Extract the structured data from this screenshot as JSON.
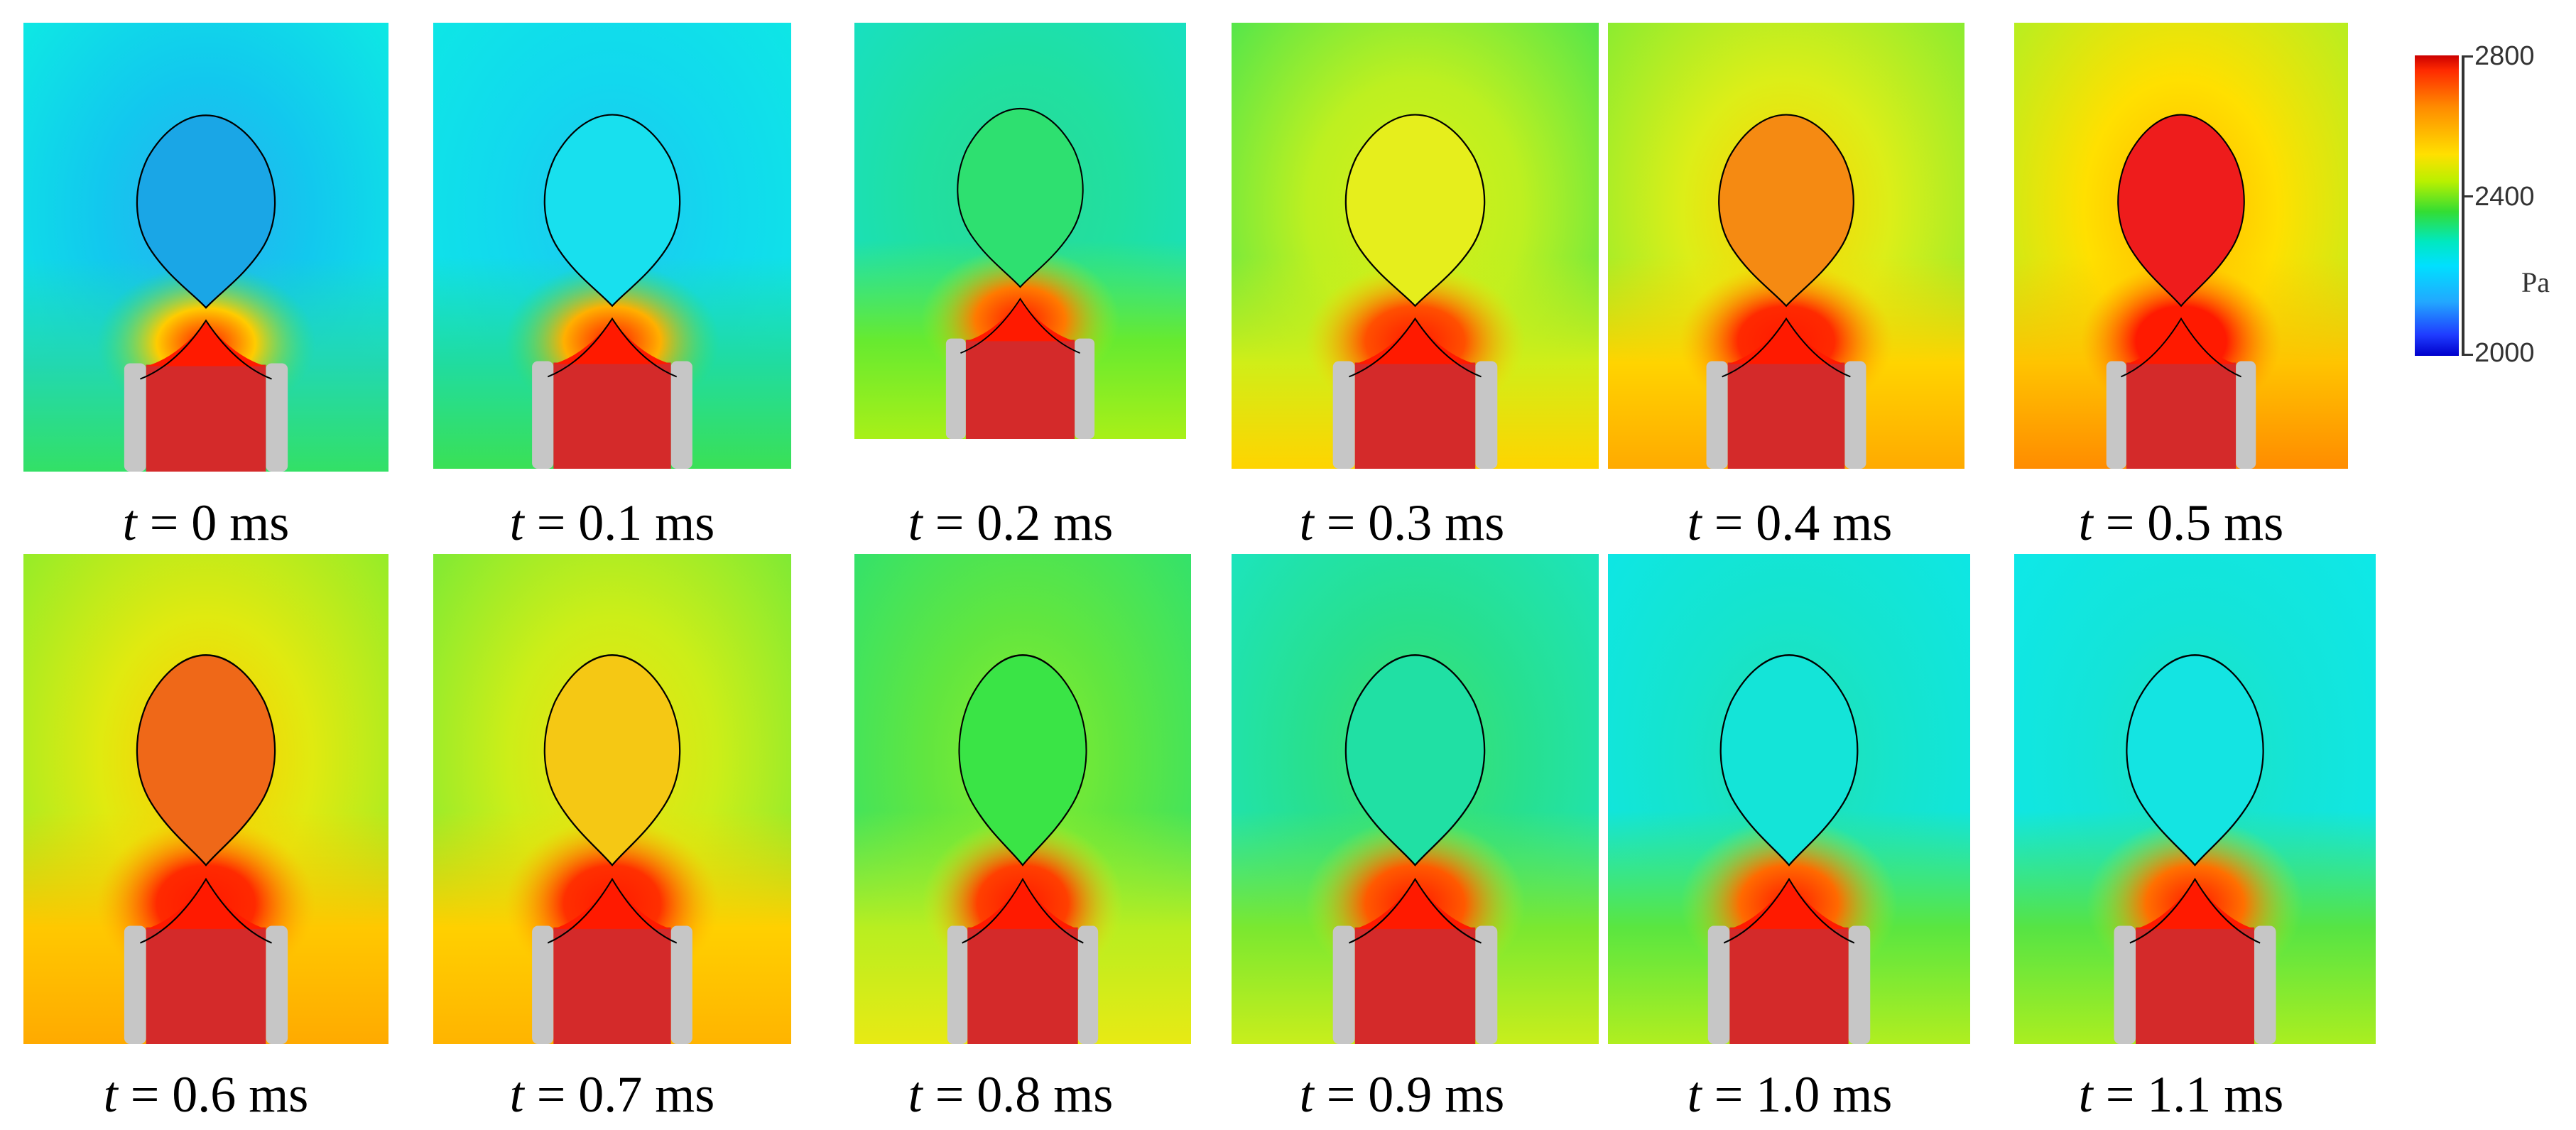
{
  "frames": [
    {
      "label_var": "t",
      "label_rest": " = 0 ms",
      "inside": "#1aa6e6",
      "field": [
        "#0ee6e6",
        "#12c8ee",
        "#2ab0f0"
      ],
      "outer": "#0ee8e4",
      "lower": [
        "#22d8b0",
        "#33e066"
      ],
      "neck": "#ffcc00"
    },
    {
      "label_var": "t",
      "label_rest": " = 0.1 ms",
      "inside": "#18e0ee",
      "field": [
        "#0ee6e6",
        "#12d8ee",
        "#20c6f0"
      ],
      "outer": "#0ee6e6",
      "lower": [
        "#20dca0",
        "#3ae056"
      ],
      "neck": "#ffb000"
    },
    {
      "label_var": "t",
      "label_rest": " = 0.2 ms",
      "inside": "#2ee070",
      "field": [
        "#16e6b8",
        "#20e0a0",
        "#2ad89a"
      ],
      "outer": "#18e0c0",
      "lower": [
        "#66ea30",
        "#a8f018"
      ],
      "neck": "#ff7a00"
    },
    {
      "label_var": "t",
      "label_rest": " = 0.3 ms",
      "inside": "#e6ee1c",
      "field": [
        "#8ef030",
        "#bdf020",
        "#d8ee18"
      ],
      "outer": "#56e64a",
      "lower": [
        "#d0ee18",
        "#ffd400"
      ],
      "neck": "#ff5000"
    },
    {
      "label_var": "t",
      "label_rest": " = 0.4 ms",
      "inside": "#f58a12",
      "field": [
        "#a6ee20",
        "#dcee18",
        "#ffd000"
      ],
      "outer": "#8cec30",
      "lower": [
        "#ffd400",
        "#ffaa00"
      ],
      "neck": "#ff2a00"
    },
    {
      "label_var": "t",
      "label_rest": " = 0.5 ms",
      "inside": "#ee1c1c",
      "field": [
        "#c8ee1c",
        "#ffe000",
        "#ffb400"
      ],
      "outer": "#b8ee20",
      "lower": [
        "#ffc400",
        "#ff8c00"
      ],
      "neck": "#ff1a00"
    },
    {
      "label_var": "t",
      "label_rest": " = 0.6 ms",
      "inside": "#ef6818",
      "field": [
        "#a6ee20",
        "#e0ea10",
        "#ffc800"
      ],
      "outer": "#96ec28",
      "lower": [
        "#ffc800",
        "#ffaa00"
      ],
      "neck": "#ff2a00"
    },
    {
      "label_var": "t",
      "label_rest": " = 0.7 ms",
      "inside": "#f5c814",
      "field": [
        "#94ec28",
        "#ccee18",
        "#f0e010"
      ],
      "outer": "#80ea34",
      "lower": [
        "#ffd000",
        "#ffb400"
      ],
      "neck": "#ff3000"
    },
    {
      "label_var": "t",
      "label_rest": " = 0.8 ms",
      "inside": "#3ae446",
      "field": [
        "#30e080",
        "#60e640",
        "#8aec2c"
      ],
      "outer": "#34e26a",
      "lower": [
        "#b8ee20",
        "#e8ea14"
      ],
      "neck": "#ff4000"
    },
    {
      "label_var": "t",
      "label_rest": " = 0.9 ms",
      "inside": "#20e0a4",
      "field": [
        "#18e2b0",
        "#28e08e",
        "#40e26a"
      ],
      "outer": "#1ce4bc",
      "lower": [
        "#7ae830",
        "#c8ee1c"
      ],
      "neck": "#ff5a00"
    },
    {
      "label_var": "t",
      "label_rest": " = 1.0 ms",
      "inside": "#14e4d8",
      "field": [
        "#0ee6e0",
        "#16e4cc",
        "#22e0b0"
      ],
      "outer": "#0ee6e4",
      "lower": [
        "#5ae640",
        "#b0ee20"
      ],
      "neck": "#ff6a00"
    },
    {
      "label_var": "t",
      "label_rest": " = 1.1 ms",
      "inside": "#14e4e2",
      "field": [
        "#0ee6e6",
        "#14e4d8",
        "#1ee2c0"
      ],
      "outer": "#0ee8e8",
      "lower": [
        "#56e444",
        "#aaee20"
      ],
      "neck": "#ff7000"
    }
  ],
  "colorbar": {
    "max_label": "2800",
    "mid_label": "2400",
    "min_label": "2000",
    "unit": "Pa",
    "max_value": 2800,
    "mid_value": 2400,
    "min_value": 2000
  },
  "colors": {
    "nozzle": "#d42a2a",
    "nozzle_tip": "#ff1a00",
    "wall": "#c6c6c6",
    "interface": "#000000"
  }
}
